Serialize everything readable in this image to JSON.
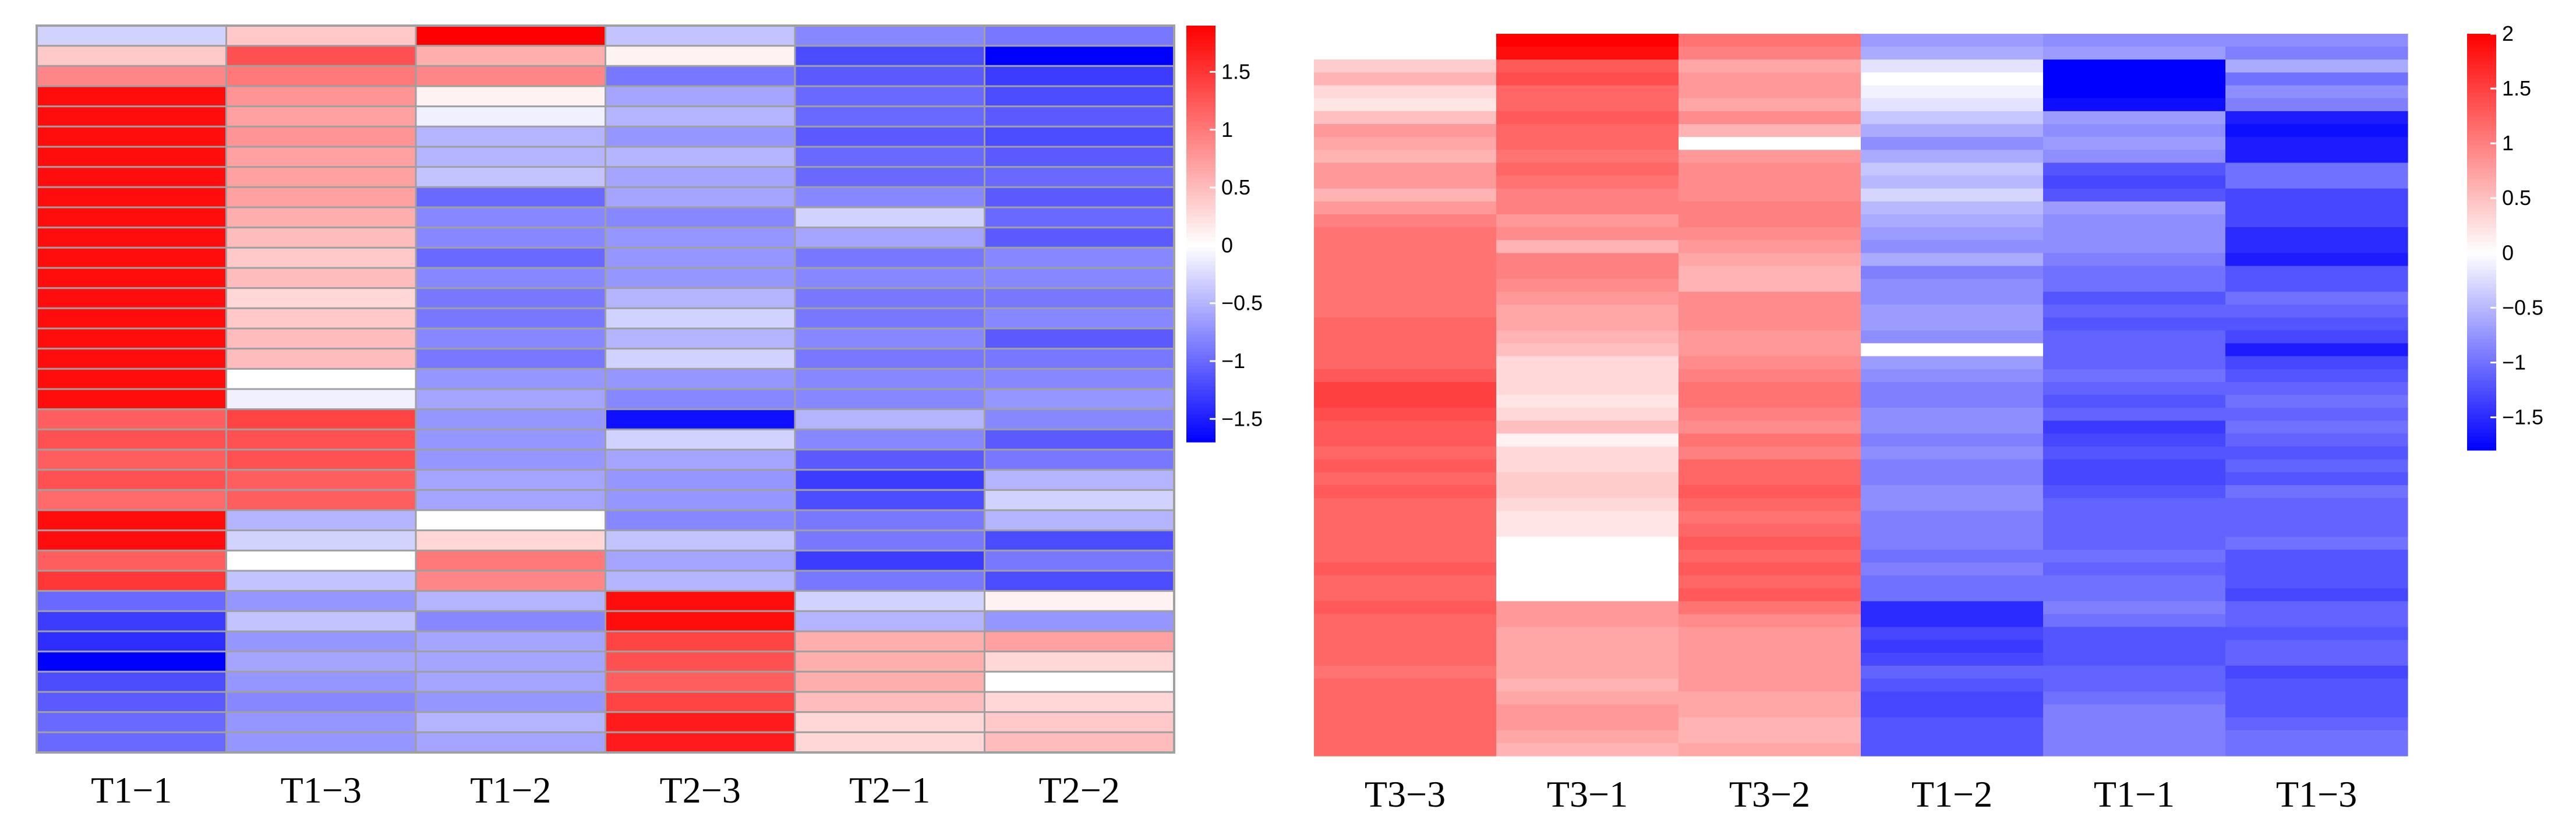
{
  "colors": {
    "low": "#0000ff",
    "mid": "#ffffff",
    "high": "#ff0000",
    "grid": "#a0a0a0"
  },
  "chart_data": [
    {
      "type": "heatmap",
      "title": "",
      "name": "left",
      "columns": [
        "T1−1",
        "T1−3",
        "T1−2",
        "T2−3",
        "T2−1",
        "T2−2"
      ],
      "row_count": 36,
      "gridlines": true,
      "values": [
        [
          -0.3,
          0.4,
          1.9,
          -0.4,
          -0.8,
          -0.9
        ],
        [
          0.4,
          1.3,
          0.6,
          0.1,
          -1.2,
          -1.8
        ],
        [
          0.9,
          1.0,
          0.9,
          -0.9,
          -1.1,
          -1.3
        ],
        [
          1.8,
          0.8,
          0.1,
          -0.6,
          -1.0,
          -1.2
        ],
        [
          1.8,
          0.7,
          -0.1,
          -0.5,
          -1.0,
          -1.1
        ],
        [
          1.8,
          0.8,
          -0.5,
          -0.7,
          -1.1,
          -1.2
        ],
        [
          1.8,
          0.7,
          -0.5,
          -0.5,
          -1.0,
          -1.1
        ],
        [
          1.8,
          0.7,
          -0.4,
          -0.6,
          -1.0,
          -1.0
        ],
        [
          1.8,
          0.7,
          -1.0,
          -0.6,
          -0.8,
          -1.1
        ],
        [
          1.8,
          0.6,
          -0.8,
          -0.8,
          -0.3,
          -1.0
        ],
        [
          1.8,
          0.5,
          -0.8,
          -0.7,
          -0.6,
          -1.1
        ],
        [
          1.8,
          0.4,
          -1.0,
          -0.7,
          -0.9,
          -0.8
        ],
        [
          1.8,
          0.5,
          -0.8,
          -0.7,
          -0.8,
          -0.8
        ],
        [
          1.8,
          0.3,
          -0.9,
          -0.5,
          -0.9,
          -0.9
        ],
        [
          1.8,
          0.4,
          -0.9,
          -0.3,
          -0.9,
          -0.8
        ],
        [
          1.8,
          0.5,
          -0.8,
          -0.5,
          -0.8,
          -1.1
        ],
        [
          1.8,
          0.5,
          -0.9,
          -0.3,
          -0.9,
          -0.9
        ],
        [
          1.8,
          0.0,
          -0.7,
          -0.7,
          -0.8,
          -0.8
        ],
        [
          1.8,
          -0.1,
          -0.6,
          -0.8,
          -0.8,
          -0.7
        ],
        [
          1.2,
          1.4,
          -0.7,
          -1.6,
          -0.5,
          -0.8
        ],
        [
          1.3,
          1.3,
          -0.7,
          -0.3,
          -0.8,
          -1.1
        ],
        [
          1.2,
          1.3,
          -0.7,
          -0.6,
          -1.1,
          -0.9
        ],
        [
          1.3,
          1.2,
          -0.6,
          -0.7,
          -1.3,
          -0.5
        ],
        [
          1.1,
          1.2,
          -0.6,
          -0.7,
          -1.2,
          -0.3
        ],
        [
          1.8,
          -0.5,
          0.0,
          -0.8,
          -0.9,
          -0.5
        ],
        [
          1.8,
          -0.3,
          0.3,
          -0.4,
          -0.9,
          -1.2
        ],
        [
          1.2,
          0.0,
          1.0,
          -0.6,
          -1.3,
          -0.9
        ],
        [
          1.5,
          -0.4,
          0.9,
          -0.5,
          -0.9,
          -1.2
        ],
        [
          -1.0,
          -0.7,
          -0.5,
          1.8,
          -0.3,
          0.1
        ],
        [
          -1.3,
          -0.4,
          -0.8,
          1.8,
          -0.5,
          -0.7
        ],
        [
          -1.4,
          -0.7,
          -0.6,
          1.4,
          0.6,
          0.7
        ],
        [
          -1.7,
          -0.6,
          -0.6,
          1.3,
          0.6,
          0.3
        ],
        [
          -1.2,
          -0.7,
          -0.6,
          1.2,
          0.6,
          0.0
        ],
        [
          -1.1,
          -0.8,
          -0.7,
          1.4,
          0.5,
          0.3
        ],
        [
          -1.0,
          -0.7,
          -0.5,
          1.7,
          0.3,
          0.4
        ],
        [
          -1.0,
          -0.7,
          -0.6,
          1.7,
          0.3,
          0.5
        ]
      ],
      "color_scale": {
        "min": -1.7,
        "max": 1.9,
        "ticks": [
          1.5,
          1,
          0.5,
          0,
          -0.5,
          -1,
          -1.5
        ],
        "tick_labels": [
          "1.5",
          "1",
          "0.5",
          "0",
          "−0.5",
          "−1",
          "−1.5"
        ]
      }
    },
    {
      "type": "heatmap",
      "title": "",
      "name": "right",
      "columns": [
        "T3−3",
        "T3−1",
        "T3−2",
        "T1−2",
        "T1−1",
        "T1−3"
      ],
      "row_count": 56,
      "gridlines": false,
      "values": [
        [
          0.0,
          2.0,
          1.1,
          -0.7,
          -0.8,
          -0.8
        ],
        [
          0.0,
          1.9,
          1.0,
          -0.6,
          -0.7,
          -0.9
        ],
        [
          0.4,
          1.3,
          0.7,
          -0.2,
          -1.9,
          -0.6
        ],
        [
          0.6,
          1.4,
          0.8,
          0.0,
          -1.9,
          -1.0
        ],
        [
          0.3,
          1.2,
          0.8,
          -0.1,
          -1.8,
          -0.8
        ],
        [
          0.2,
          1.2,
          0.7,
          -0.2,
          -1.7,
          -0.9
        ],
        [
          0.5,
          1.3,
          0.9,
          -0.4,
          -0.7,
          -1.6
        ],
        [
          0.8,
          1.2,
          0.6,
          -0.6,
          -0.8,
          -1.7
        ],
        [
          0.7,
          1.2,
          0.0,
          -0.8,
          -0.7,
          -1.6
        ],
        [
          0.6,
          1.1,
          0.8,
          -0.6,
          -0.8,
          -1.6
        ],
        [
          0.8,
          1.2,
          0.9,
          -0.4,
          -1.2,
          -1.0
        ],
        [
          0.8,
          1.1,
          0.9,
          -0.5,
          -1.3,
          -1.0
        ],
        [
          0.6,
          1.0,
          0.9,
          -0.3,
          -1.2,
          -1.3
        ],
        [
          0.8,
          1.0,
          1.0,
          -0.5,
          -0.7,
          -1.3
        ],
        [
          1.0,
          0.8,
          1.0,
          -0.6,
          -0.8,
          -1.3
        ],
        [
          1.1,
          0.9,
          0.9,
          -0.7,
          -0.8,
          -1.5
        ],
        [
          1.1,
          0.6,
          0.8,
          -0.8,
          -0.8,
          -1.5
        ],
        [
          1.1,
          1.0,
          0.7,
          -0.6,
          -0.9,
          -1.6
        ],
        [
          1.1,
          1.0,
          0.6,
          -0.9,
          -1.0,
          -1.2
        ],
        [
          1.1,
          0.9,
          0.6,
          -0.8,
          -1.0,
          -1.2
        ],
        [
          1.1,
          0.8,
          0.9,
          -0.8,
          -1.2,
          -1.0
        ],
        [
          1.1,
          0.7,
          0.9,
          -0.7,
          -1.1,
          -1.1
        ],
        [
          1.2,
          0.7,
          0.9,
          -0.7,
          -1.2,
          -1.2
        ],
        [
          1.2,
          0.6,
          0.8,
          -0.8,
          -1.1,
          -1.3
        ],
        [
          1.2,
          0.5,
          0.8,
          0.0,
          -1.1,
          -1.6
        ],
        [
          1.2,
          0.3,
          0.9,
          -0.7,
          -1.1,
          -1.3
        ],
        [
          1.3,
          0.3,
          1.0,
          -0.8,
          -1.0,
          -1.2
        ],
        [
          1.5,
          0.3,
          1.1,
          -0.9,
          -1.1,
          -1.1
        ],
        [
          1.5,
          0.2,
          1.1,
          -0.9,
          -1.2,
          -1.0
        ],
        [
          1.4,
          0.3,
          1.0,
          -0.8,
          -1.1,
          -1.1
        ],
        [
          1.3,
          0.5,
          0.9,
          -0.8,
          -1.4,
          -1.0
        ],
        [
          1.3,
          0.1,
          1.1,
          -0.9,
          -1.3,
          -1.1
        ],
        [
          1.2,
          0.3,
          1.0,
          -0.8,
          -1.2,
          -1.2
        ],
        [
          1.3,
          0.3,
          1.2,
          -0.9,
          -1.3,
          -1.1
        ],
        [
          1.2,
          0.4,
          1.2,
          -0.9,
          -1.3,
          -1.2
        ],
        [
          1.3,
          0.4,
          1.3,
          -0.8,
          -1.2,
          -1.0
        ],
        [
          1.2,
          0.3,
          1.2,
          -0.8,
          -1.1,
          -1.1
        ],
        [
          1.2,
          0.2,
          1.1,
          -0.9,
          -1.1,
          -1.1
        ],
        [
          1.2,
          0.2,
          1.2,
          -0.9,
          -1.1,
          -1.1
        ],
        [
          1.2,
          0.0,
          1.3,
          -0.9,
          -1.1,
          -1.0
        ],
        [
          1.2,
          0.0,
          1.2,
          -1.0,
          -1.0,
          -1.2
        ],
        [
          1.3,
          0.0,
          1.3,
          -0.9,
          -1.1,
          -1.2
        ],
        [
          1.2,
          0.0,
          1.2,
          -1.0,
          -1.0,
          -1.2
        ],
        [
          1.2,
          0.0,
          1.3,
          -1.0,
          -1.0,
          -1.3
        ],
        [
          1.3,
          0.8,
          1.1,
          -1.5,
          -0.9,
          -1.1
        ],
        [
          1.2,
          0.8,
          0.9,
          -1.5,
          -1.0,
          -1.1
        ],
        [
          1.2,
          0.7,
          0.8,
          -1.3,
          -1.2,
          -1.2
        ],
        [
          1.2,
          0.7,
          0.8,
          -1.4,
          -1.2,
          -1.1
        ],
        [
          1.2,
          0.7,
          0.8,
          -1.3,
          -1.2,
          -1.1
        ],
        [
          1.1,
          0.7,
          0.8,
          -1.1,
          -1.1,
          -1.3
        ],
        [
          1.2,
          0.6,
          0.8,
          -1.2,
          -1.1,
          -1.2
        ],
        [
          1.2,
          0.7,
          0.7,
          -1.3,
          -1.0,
          -1.2
        ],
        [
          1.2,
          0.8,
          0.7,
          -1.3,
          -0.9,
          -1.2
        ],
        [
          1.2,
          0.8,
          0.6,
          -1.2,
          -0.9,
          -1.1
        ],
        [
          1.2,
          0.7,
          0.6,
          -1.2,
          -0.9,
          -1.0
        ],
        [
          1.2,
          0.6,
          0.7,
          -1.2,
          -0.9,
          -1.0
        ]
      ],
      "color_scale": {
        "min": -1.8,
        "max": 2.0,
        "ticks": [
          2,
          1.5,
          1,
          0.5,
          0,
          -0.5,
          -1,
          -1.5
        ],
        "tick_labels": [
          "2",
          "1.5",
          "1",
          "0.5",
          "0",
          "−0.5",
          "−1",
          "−1.5"
        ]
      }
    }
  ]
}
